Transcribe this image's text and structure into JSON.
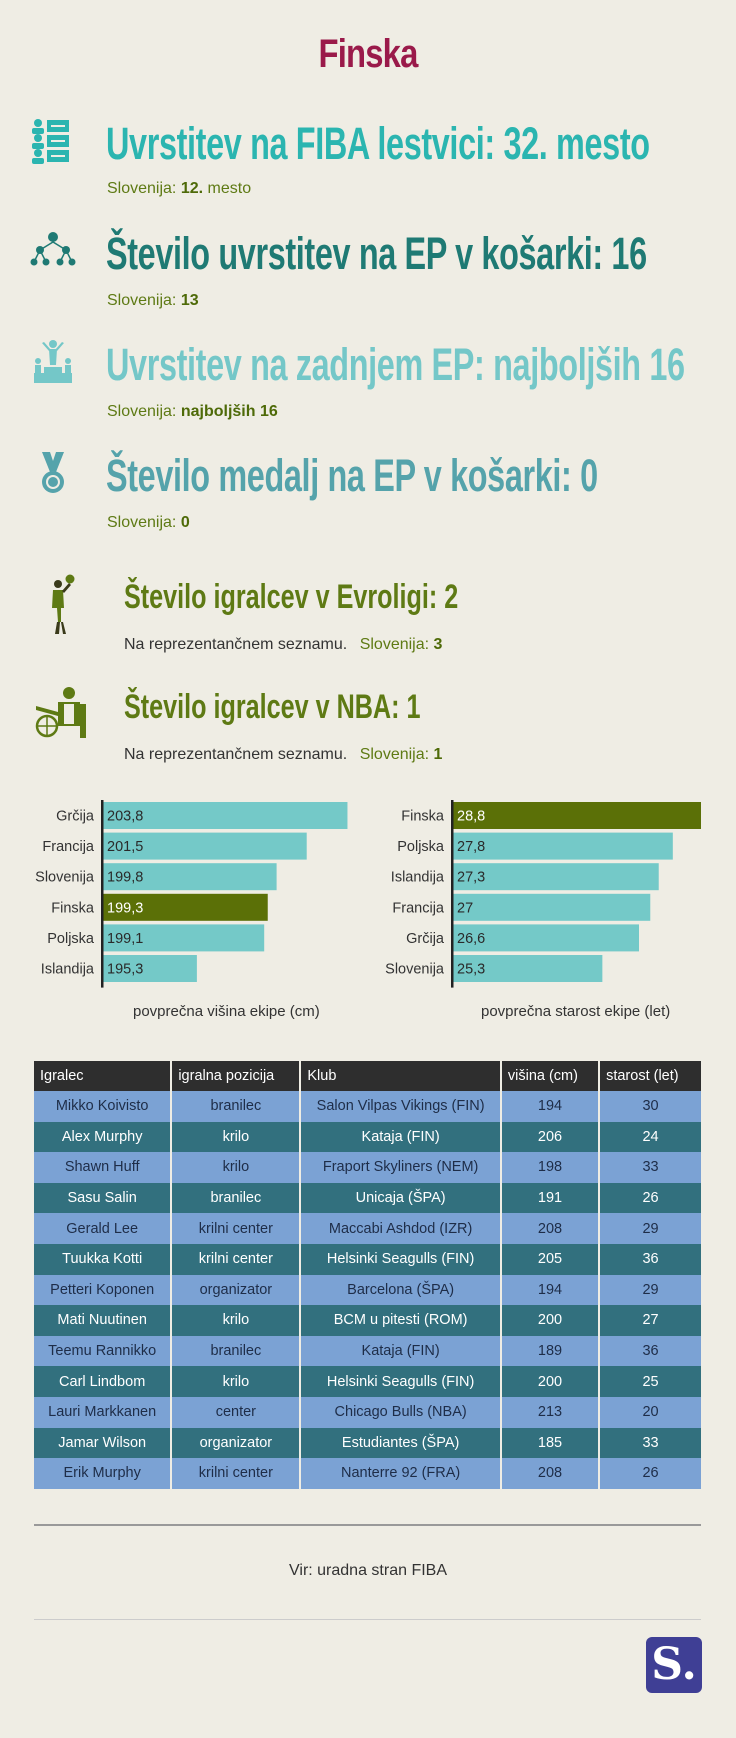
{
  "title": "Finska",
  "colors": {
    "title": "#9a1a4a",
    "teal": "#2bb5b0",
    "dark_teal": "#1f7a74",
    "light_teal": "#74c7c8",
    "steel_teal": "#55a3ab",
    "olive": "#5e7a14",
    "bar": "#74c9c8",
    "bar_highlight": "#5b7007"
  },
  "stats": [
    {
      "icon": "ranking-list-icon",
      "text": "Uvrstitev na FIBA lestvici: 32. mesto",
      "sub_label": "Slovenija:",
      "sub_value": "12.",
      "sub_suffix": "mesto"
    },
    {
      "icon": "hierarchy-icon",
      "text": "Število uvrstitev na EP v košarki: 16",
      "sub_label": "Slovenija:",
      "sub_value": "13",
      "sub_suffix": ""
    },
    {
      "icon": "podium-icon",
      "text": "Uvrstitev na zadnjem EP: najboljših 16",
      "sub_label": "Slovenija:",
      "sub_value": "najboljših 16",
      "sub_suffix": ""
    },
    {
      "icon": "medal-icon",
      "text": "Število medalj na EP v košarki: 0",
      "sub_label": "Slovenija:",
      "sub_value": "0",
      "sub_suffix": ""
    }
  ],
  "players_stats": [
    {
      "icon": "basketball-player-icon",
      "text": "Število igralcev v Evroligi: 2",
      "note": "Na reprezentančnem seznamu.",
      "sub_label": "Slovenija:",
      "sub_value": "3"
    },
    {
      "icon": "coach-bench-icon",
      "text": "Število igralcev v NBA: 1",
      "note": "Na reprezentančnem seznamu.",
      "sub_label": "Slovenija:",
      "sub_value": "1"
    }
  ],
  "chart_data": [
    {
      "type": "bar",
      "orientation": "horizontal",
      "title": "povprečna višina ekipe (cm)",
      "categories": [
        "Grčija",
        "Francija",
        "Slovenija",
        "Finska",
        "Poljska",
        "Islandija"
      ],
      "values": [
        203.8,
        201.5,
        199.8,
        199.3,
        199.1,
        195.3
      ],
      "labels": [
        "203,8",
        "201,5",
        "199,8",
        "199,3",
        "199,1",
        "195,3"
      ],
      "highlight": "Finska",
      "xlim": [
        190,
        204
      ]
    },
    {
      "type": "bar",
      "orientation": "horizontal",
      "title": "povprečna starost ekipe (let)",
      "categories": [
        "Finska",
        "Poljska",
        "Islandija",
        "Francija",
        "Grčija",
        "Slovenija"
      ],
      "values": [
        28.8,
        27.8,
        27.3,
        27.0,
        26.6,
        25.3
      ],
      "labels": [
        "28,8",
        "27,8",
        "27,3",
        "27",
        "26,6",
        "25,3"
      ],
      "highlight": "Finska",
      "xlim": [
        20,
        28.8
      ]
    }
  ],
  "table": {
    "headers": [
      "Igralec",
      "igralna pozicija",
      "Klub",
      "višina (cm)",
      "starost (let)"
    ],
    "rows": [
      [
        "Mikko Koivisto",
        "branilec",
        "Salon Vilpas Vikings (FIN)",
        "194",
        "30"
      ],
      [
        "Alex Murphy",
        "krilo",
        "Kataja (FIN)",
        "206",
        "24"
      ],
      [
        "Shawn Huff",
        "krilo",
        "Fraport Skyliners (NEM)",
        "198",
        "33"
      ],
      [
        "Sasu Salin",
        "branilec",
        "Unicaja (ŠPA)",
        "191",
        "26"
      ],
      [
        "Gerald Lee",
        "krilni center",
        "Maccabi Ashdod (IZR)",
        "208",
        "29"
      ],
      [
        "Tuukka Kotti",
        "krilni center",
        "Helsinki Seagulls (FIN)",
        "205",
        "36"
      ],
      [
        "Petteri Koponen",
        "organizator",
        "Barcelona (ŠPA)",
        "194",
        "29"
      ],
      [
        "Mati Nuutinen",
        "krilo",
        "BCM u pitesti (ROM)",
        "200",
        "27"
      ],
      [
        "Teemu Rannikko",
        "branilec",
        "Kataja (FIN)",
        "189",
        "36"
      ],
      [
        "Carl Lindbom",
        "krilo",
        "Helsinki Seagulls (FIN)",
        "200",
        "25"
      ],
      [
        "Lauri Markkanen",
        "center",
        "Chicago Bulls (NBA)",
        "213",
        "20"
      ],
      [
        "Jamar Wilson",
        "organizator",
        "Estudiantes (ŠPA)",
        "185",
        "33"
      ],
      [
        "Erik Murphy",
        "krilni center",
        "Nanterre 92 (FRA)",
        "208",
        "26"
      ]
    ]
  },
  "source": "Vir: uradna stran FIBA",
  "logo": "S."
}
